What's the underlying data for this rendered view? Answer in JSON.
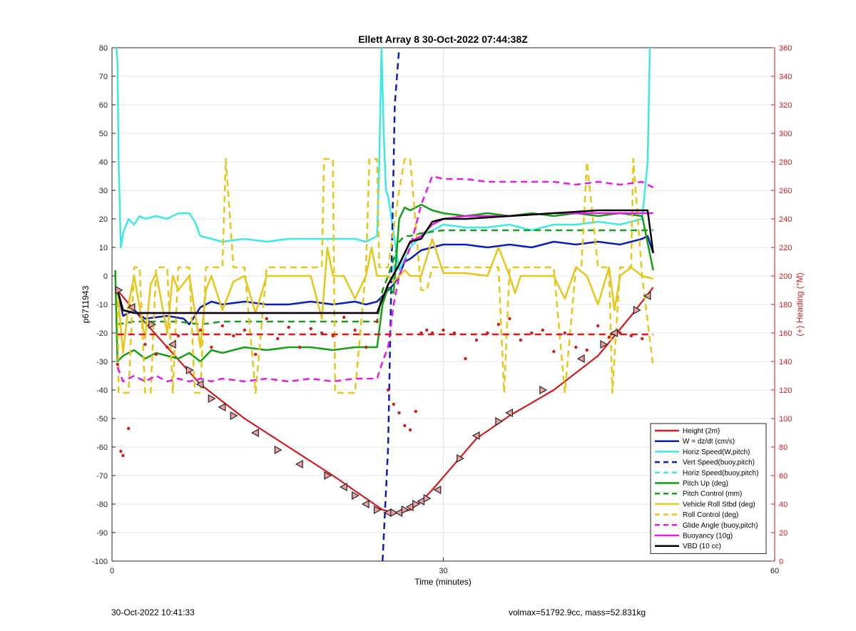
{
  "footer": {
    "timestamp": "30-Oct-2022 10:41:33",
    "stats": "volmax=51792.9cc, mass=52.831kg"
  },
  "chart_data": {
    "type": "line",
    "title": "Ellett Array 8 30-Oct-2022 07:44:38Z",
    "xlabel": "Time (minutes)",
    "ylabel": "p6711943",
    "y2label": "(+) Heading (°M)",
    "xlim": [
      0,
      60
    ],
    "ylim": [
      -100,
      80
    ],
    "y2lim": [
      0,
      360
    ],
    "xticks": [
      0,
      30,
      60
    ],
    "yticks": [
      -100,
      -90,
      -80,
      -70,
      -60,
      -50,
      -40,
      -30,
      -20,
      -10,
      0,
      10,
      20,
      30,
      40,
      50,
      60,
      70,
      80
    ],
    "y2ticks": [
      0,
      20,
      40,
      60,
      80,
      100,
      120,
      140,
      160,
      180,
      200,
      220,
      240,
      260,
      280,
      300,
      320,
      340,
      360
    ],
    "grid": true,
    "legend_position": "bottom-right",
    "colors": {
      "height": "#d7191c",
      "w": "#0a1eb4",
      "hspeed": "#3de8e8",
      "pitch": "#13a013",
      "roll": "#e6c619",
      "glide": "#e619e6",
      "vbd": "#000000",
      "heading": "#d7191c",
      "right_axis": "#d7191c"
    },
    "series": [
      {
        "name": "Height (2m)",
        "key": "height",
        "style": "solid",
        "color": "#d7191c",
        "x": [
          0.5,
          2,
          5,
          8,
          12,
          16,
          20,
          23,
          24.5,
          25.5,
          26,
          27,
          28,
          29,
          33,
          36,
          40,
          44,
          47,
          49
        ],
        "y": [
          -5,
          -12,
          -25,
          -38,
          -50,
          -60,
          -70,
          -78,
          -82,
          -83,
          -83,
          -82,
          -79,
          -75,
          -57,
          -49,
          -40,
          -28,
          -14,
          -4
        ]
      },
      {
        "name": "W = dz/dt (cm/s)",
        "key": "w",
        "style": "solid",
        "color": "#0a1eb4",
        "x": [
          0.5,
          1,
          2,
          3,
          5,
          6.5,
          7,
          7.5,
          8,
          9,
          10,
          12,
          14,
          16,
          18,
          20,
          22,
          23,
          24,
          24.5,
          25,
          25.5,
          26,
          26.5,
          27,
          28,
          29,
          30,
          32,
          34,
          36,
          38,
          40,
          42,
          44,
          46,
          48,
          48.5,
          49
        ],
        "y": [
          -5,
          -14,
          -12,
          -15,
          -14,
          -15,
          -17,
          -14,
          -11,
          -9,
          -10,
          -9,
          -10,
          -10,
          -9,
          -10,
          -9,
          -10,
          -9,
          -7,
          -5,
          -3,
          0,
          5,
          6,
          9,
          10,
          11,
          11,
          10,
          11,
          10,
          12,
          11,
          12,
          11,
          13,
          14,
          8
        ]
      },
      {
        "name": "Horiz Speed(W,pitch)",
        "key": "hspeed",
        "style": "solid",
        "color": "#3de8e8",
        "x": [
          0.4,
          0.5,
          0.6,
          0.8,
          1,
          1.5,
          2,
          2.5,
          3,
          4,
          5,
          6,
          7,
          7.5,
          8,
          9,
          10,
          12,
          14,
          16,
          18,
          20,
          22,
          23,
          24,
          24.2,
          24.4,
          24.6,
          24.8,
          25,
          25.5,
          26,
          27,
          28,
          29,
          30,
          32,
          34,
          36,
          38,
          40,
          42,
          44,
          46,
          48,
          48.5,
          48.7
        ],
        "y": [
          80,
          75,
          40,
          10,
          15,
          20,
          18,
          21,
          20,
          21,
          20,
          22,
          22,
          19,
          14,
          13,
          12,
          13,
          12,
          13,
          13,
          13,
          13,
          12,
          14,
          40,
          80,
          50,
          30,
          28,
          15,
          2,
          10,
          14,
          16,
          18,
          17,
          17,
          18,
          16,
          18,
          18,
          19,
          18,
          20,
          40,
          80
        ]
      },
      {
        "name": "Vert Speed(buoy,pitch)",
        "key": "vspeed_buoy",
        "style": "dashed",
        "color": "#0a1eb4",
        "x": [
          24.5,
          25,
          25.3,
          25.6,
          26
        ],
        "y": [
          -100,
          -60,
          0,
          60,
          80
        ]
      },
      {
        "name": "Horiz Speed(buoy,pitch)",
        "key": "hspeed_buoy",
        "style": "dashed",
        "color": "#3de8e8",
        "x": [
          25.4,
          25.6,
          25.8
        ],
        "y": [
          -2,
          5,
          12
        ]
      },
      {
        "name": "Pitch Up (deg)",
        "key": "pitch",
        "style": "solid",
        "color": "#13a013",
        "x": [
          0.3,
          0.5,
          1,
          2,
          3,
          4,
          5,
          6,
          7,
          8,
          9,
          10,
          12,
          14,
          16,
          18,
          20,
          22,
          24,
          24.5,
          25,
          25.5,
          26,
          26.5,
          27,
          28,
          29,
          30,
          32,
          34,
          36,
          38,
          40,
          42,
          44,
          46,
          48,
          49
        ],
        "y": [
          2,
          -30,
          -28,
          -26,
          -29,
          -27,
          -28,
          -29,
          -27,
          -30,
          -26,
          -27,
          -25,
          -26,
          -25,
          -25,
          -26,
          -25,
          -25,
          -10,
          -4,
          -6,
          20,
          24,
          23,
          25,
          23,
          22,
          21,
          22,
          21,
          22,
          21,
          22,
          21,
          22,
          21,
          2
        ]
      },
      {
        "name": "Pitch Control (mm)",
        "key": "pitch_ctl",
        "style": "dashed",
        "color": "#13a013",
        "x": [
          0.5,
          2,
          4,
          6,
          8,
          10,
          12,
          14,
          16,
          18,
          20,
          22,
          24,
          24.5,
          25,
          26,
          26.5,
          27,
          28,
          30,
          34,
          38,
          42,
          46,
          49
        ],
        "y": [
          -17,
          -16,
          -16,
          -16,
          -17,
          -16,
          -16,
          -16,
          -16,
          -16,
          -16,
          -16,
          -16,
          -5,
          0,
          12,
          14,
          14,
          15,
          16,
          16,
          16,
          16,
          16,
          16
        ]
      },
      {
        "name": "Vehicle Roll Stbd (deg)",
        "key": "roll",
        "style": "solid",
        "color": "#e6c619",
        "x": [
          0.5,
          1,
          1.5,
          2,
          3,
          3.5,
          4,
          5,
          5.5,
          6,
          7,
          8,
          8.5,
          9,
          10,
          11,
          12,
          13,
          14,
          16,
          18,
          19,
          19.5,
          20,
          21,
          22,
          23,
          23.5,
          24,
          25,
          25.5,
          26,
          26.5,
          27,
          28,
          29,
          30,
          32,
          34,
          35,
          36,
          36.5,
          37,
          38,
          40,
          41,
          42,
          43,
          44,
          45,
          45.5,
          46,
          47,
          48,
          49
        ],
        "y": [
          -5,
          -27,
          -10,
          0,
          -22,
          -3,
          1,
          -20,
          0,
          -5,
          0,
          -25,
          -5,
          0,
          -12,
          -2,
          0,
          -13,
          0,
          0,
          0,
          -15,
          10,
          0,
          0,
          -8,
          0,
          10,
          0,
          0,
          -2,
          0,
          2,
          0,
          0,
          13,
          1,
          1,
          0,
          10,
          0,
          -6,
          0,
          0,
          0,
          -8,
          3,
          0,
          -10,
          3,
          -12,
          0,
          3,
          0,
          -1
        ]
      },
      {
        "name": "Roll Control (deg)",
        "key": "roll_ctl",
        "style": "dashed",
        "color": "#e6c619",
        "x": [
          0.5,
          0.6,
          1,
          1.5,
          2,
          2.5,
          3,
          3.5,
          4,
          5,
          5.5,
          6,
          7,
          7.5,
          8,
          8.5,
          9,
          10,
          10.3,
          11,
          12,
          13,
          14,
          15,
          16,
          18,
          19,
          19.2,
          20,
          20.2,
          22,
          23,
          23.3,
          24,
          24.2,
          25,
          26,
          26.5,
          27,
          28,
          28.5,
          29,
          30,
          31,
          33,
          35,
          35.5,
          36,
          37,
          38,
          40,
          41,
          42,
          42.5,
          43,
          44,
          45,
          45.3,
          46,
          47,
          47.2,
          48,
          49
        ],
        "y": [
          -5,
          -41,
          -41,
          -41,
          3,
          3,
          -41,
          -41,
          3,
          3,
          -41,
          3,
          3,
          -41,
          -41,
          3,
          3,
          3,
          41,
          3,
          3,
          -41,
          3,
          3,
          3,
          3,
          3,
          41,
          41,
          -41,
          -41,
          3,
          41,
          41,
          3,
          3,
          30,
          41,
          41,
          -5,
          -5,
          3,
          3,
          3,
          3,
          3,
          -41,
          3,
          3,
          3,
          3,
          -41,
          3,
          3,
          40,
          3,
          3,
          -41,
          3,
          3,
          41,
          0,
          -32
        ]
      },
      {
        "name": "Glide Angle (buoy,pitch)",
        "key": "glide",
        "style": "dashed",
        "color": "#e619e6",
        "x": [
          0.5,
          1,
          2,
          3,
          4,
          5,
          6,
          7,
          8,
          9,
          10,
          12,
          14,
          16,
          18,
          20,
          22,
          24,
          24.5,
          25,
          25.5,
          26,
          27,
          28,
          29,
          30,
          32,
          34,
          36,
          38,
          40,
          42,
          44,
          46,
          48,
          49
        ],
        "y": [
          -32,
          -37,
          -35,
          -37,
          -35,
          -37,
          -36,
          -37,
          -36,
          -37,
          -36,
          -37,
          -36,
          -37,
          -36,
          -37,
          -36,
          -36,
          -30,
          -25,
          -10,
          0,
          10,
          25,
          35,
          34,
          34,
          33,
          33,
          33,
          33,
          32,
          33,
          32,
          33,
          31
        ]
      },
      {
        "name": "Buoyancy (10g)",
        "key": "buoyancy",
        "style": "solid",
        "color": "#e619e6",
        "x": [
          0.5,
          1,
          2,
          5,
          10,
          15,
          20,
          23,
          24,
          24.5,
          25,
          26,
          27,
          28,
          29,
          30,
          32,
          36,
          40,
          44,
          49
        ],
        "y": [
          -5,
          -12,
          -13,
          -13,
          -13,
          -13,
          -13,
          -13,
          -13,
          -8,
          -3,
          4,
          12,
          14,
          18,
          20,
          21,
          21,
          22,
          22,
          22
        ]
      },
      {
        "name": "VBD (10 cc)",
        "key": "vbd",
        "style": "solid",
        "color": "#000000",
        "x": [
          0.5,
          1,
          2,
          5,
          10,
          15,
          20,
          23,
          24,
          24.5,
          25,
          26,
          27,
          28,
          29,
          30,
          32,
          36,
          40,
          44,
          48.5,
          49
        ],
        "y": [
          -5,
          -12,
          -13,
          -13,
          -13,
          -13,
          -13,
          -13,
          -13,
          -8,
          -3,
          4,
          12,
          13,
          19,
          20,
          20,
          21,
          22,
          23,
          23,
          8
        ]
      }
    ],
    "heading_target": {
      "name": "Heading target",
      "axis": "right",
      "value": 159,
      "x": [
        0.5,
        49
      ]
    },
    "heading_points": {
      "axis": "right",
      "x": [
        0.5,
        0.8,
        1,
        1.5,
        3,
        4,
        5,
        6,
        8,
        9,
        10,
        11,
        12,
        13,
        14,
        15,
        16,
        17,
        18,
        19,
        20,
        21,
        22,
        23,
        24,
        25,
        25.5,
        26,
        26.5,
        27,
        27.5,
        28,
        28.5,
        29,
        30,
        31,
        32,
        33,
        34,
        35,
        36,
        37,
        38,
        39,
        40,
        41,
        42,
        43,
        44,
        45,
        46,
        47,
        48
      ],
      "y": [
        138,
        77,
        74,
        93,
        152,
        145,
        150,
        158,
        162,
        150,
        165,
        158,
        162,
        145,
        170,
        156,
        164,
        150,
        163,
        160,
        158,
        171,
        162,
        150,
        168,
        120,
        110,
        104,
        95,
        92,
        105,
        160,
        162,
        160,
        162,
        160,
        142,
        155,
        160,
        166,
        170,
        155,
        160,
        162,
        147,
        160,
        150,
        148,
        165,
        157,
        160,
        158,
        156
      ]
    },
    "direction_markers": {
      "on_series": "Height (2m)",
      "x": [
        0.6,
        1.8,
        3.6,
        5.5,
        7,
        8,
        9,
        10,
        11,
        13,
        15,
        17,
        19.5,
        21,
        22,
        23,
        24,
        25,
        25.5,
        26,
        26.5,
        27,
        27.5,
        28,
        28.5,
        29.5,
        31.5,
        33,
        35,
        36,
        39,
        42.5,
        44.5,
        45.5,
        47.5,
        48.5
      ],
      "y": [
        -5,
        -11,
        -17,
        -24,
        -33,
        -38,
        -43,
        -46,
        -49,
        -55,
        -61,
        -66,
        -70,
        -74,
        -77,
        -80,
        -82,
        -83,
        -83,
        -83,
        -82,
        -81,
        -80,
        -79,
        -78,
        -75,
        -64,
        -56,
        -51,
        -48,
        -40,
        -29,
        -24,
        -20,
        -12,
        -7
      ]
    }
  }
}
